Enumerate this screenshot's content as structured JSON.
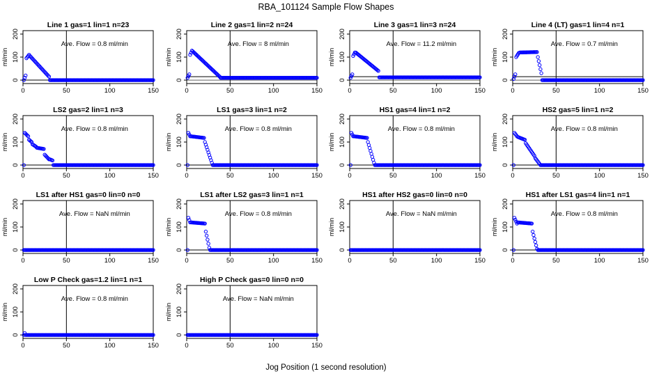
{
  "figure": {
    "title": "RBA_101124  Sample Flow Shapes",
    "xlabel": "Jog Position (1 second resolution)",
    "ylabel": "ml/min",
    "x_ticks": [
      "0",
      "50",
      "100",
      "150"
    ],
    "y_ticks": [
      "0",
      "100",
      "200"
    ],
    "point_color": "#0000ff"
  },
  "chart_data": [
    {
      "type": "scatter",
      "title": "Line 1 gas=1 lin=1 n=23",
      "annotation": "Ave. Flow =  0.8  ml/min",
      "xlim": [
        0,
        150
      ],
      "ylim": [
        -15,
        215
      ],
      "vline": 50,
      "hline": 0,
      "segments": [
        [
          1,
          3,
          0,
          20
        ],
        [
          4,
          7,
          95,
          110
        ],
        [
          8,
          30,
          105,
          15
        ],
        [
          31,
          150,
          0,
          0
        ]
      ]
    },
    {
      "type": "scatter",
      "title": "Line 2 gas=1 lin=2 n=24",
      "annotation": "Ave. Flow =  8  ml/min",
      "xlim": [
        0,
        150
      ],
      "ylim": [
        -15,
        215
      ],
      "vline": 50,
      "hline": 15,
      "segments": [
        [
          1,
          3,
          10,
          25
        ],
        [
          4,
          6,
          110,
          128
        ],
        [
          7,
          38,
          125,
          15
        ],
        [
          39,
          150,
          10,
          10
        ]
      ]
    },
    {
      "type": "scatter",
      "title": "Line 3 gas=1 lin=3 n=24",
      "annotation": "Ave. Flow =  11.2  ml/min",
      "xlim": [
        0,
        150
      ],
      "ylim": [
        -15,
        215
      ],
      "vline": 50,
      "hline": 15,
      "segments": [
        [
          1,
          3,
          10,
          25
        ],
        [
          4,
          6,
          105,
          120
        ],
        [
          7,
          33,
          120,
          40
        ],
        [
          34,
          150,
          12,
          12
        ]
      ]
    },
    {
      "type": "scatter",
      "title": "Line 4 (LT) gas=1 lin=4 n=1",
      "annotation": "Ave. Flow =  0.7  ml/min",
      "xlim": [
        0,
        150
      ],
      "ylim": [
        -15,
        215
      ],
      "vline": 50,
      "hline": 15,
      "segments": [
        [
          1,
          3,
          5,
          25
        ],
        [
          4,
          7,
          100,
          118
        ],
        [
          8,
          28,
          120,
          122
        ],
        [
          29,
          33,
          100,
          30
        ],
        [
          34,
          150,
          0,
          0
        ]
      ]
    },
    {
      "type": "scatter",
      "title": "LS2 gas=2 lin=1 n=3",
      "annotation": "Ave. Flow =  0.8  ml/min",
      "xlim": [
        0,
        150
      ],
      "ylim": [
        -15,
        215
      ],
      "vline": 50,
      "hline": 0,
      "segments": [
        [
          1,
          1,
          0,
          0
        ],
        [
          2,
          6,
          140,
          125
        ],
        [
          7,
          10,
          110,
          100
        ],
        [
          11,
          15,
          90,
          80
        ],
        [
          16,
          24,
          75,
          70
        ],
        [
          25,
          30,
          45,
          25
        ],
        [
          31,
          34,
          25,
          20
        ],
        [
          35,
          150,
          0,
          0
        ]
      ]
    },
    {
      "type": "scatter",
      "title": "LS1 gas=3 lin=1 n=2",
      "annotation": "Ave. Flow =  0.8  ml/min",
      "xlim": [
        0,
        150
      ],
      "ylim": [
        -15,
        215
      ],
      "vline": 50,
      "hline": 0,
      "segments": [
        [
          1,
          1,
          0,
          0
        ],
        [
          2,
          4,
          140,
          125
        ],
        [
          5,
          20,
          125,
          118
        ],
        [
          21,
          29,
          100,
          10
        ],
        [
          30,
          150,
          0,
          0
        ]
      ]
    },
    {
      "type": "scatter",
      "title": "HS1 gas=4 lin=1 n=2",
      "annotation": "Ave. Flow =  0.8  ml/min",
      "xlim": [
        0,
        150
      ],
      "ylim": [
        -15,
        215
      ],
      "vline": 50,
      "hline": 0,
      "segments": [
        [
          1,
          1,
          0,
          0
        ],
        [
          2,
          4,
          140,
          125
        ],
        [
          5,
          20,
          125,
          118
        ],
        [
          21,
          28,
          100,
          10
        ],
        [
          29,
          150,
          0,
          0
        ]
      ]
    },
    {
      "type": "scatter",
      "title": "HS2 gas=5 lin=1 n=2",
      "annotation": "Ave. Flow =  0.8  ml/min",
      "xlim": [
        0,
        150
      ],
      "ylim": [
        -15,
        215
      ],
      "vline": 50,
      "hline": 0,
      "segments": [
        [
          1,
          1,
          0,
          0
        ],
        [
          2,
          5,
          140,
          125
        ],
        [
          6,
          14,
          122,
          110
        ],
        [
          15,
          25,
          95,
          40
        ],
        [
          26,
          31,
          30,
          5
        ],
        [
          32,
          150,
          0,
          0
        ]
      ]
    },
    {
      "type": "scatter",
      "title": "LS1 after HS1 gas=0 lin=0 n=0",
      "annotation": "Ave. Flow =  NaN  ml/min",
      "xlim": [
        0,
        150
      ],
      "ylim": [
        -15,
        215
      ],
      "vline": 50,
      "hline": 0,
      "segments": [
        [
          1,
          150,
          0,
          0
        ]
      ]
    },
    {
      "type": "scatter",
      "title": "LS1 after LS2 gas=3 lin=1 n=1",
      "annotation": "Ave. Flow =  0.8  ml/min",
      "xlim": [
        0,
        150
      ],
      "ylim": [
        -15,
        215
      ],
      "vline": 50,
      "hline": 0,
      "segments": [
        [
          1,
          1,
          0,
          0
        ],
        [
          2,
          4,
          140,
          120
        ],
        [
          5,
          21,
          120,
          115
        ],
        [
          22,
          26,
          80,
          10
        ],
        [
          27,
          150,
          0,
          0
        ]
      ]
    },
    {
      "type": "scatter",
      "title": "HS1 after HS2 gas=0 lin=0 n=0",
      "annotation": "Ave. Flow =  NaN  ml/min",
      "xlim": [
        0,
        150
      ],
      "ylim": [
        -15,
        215
      ],
      "vline": 50,
      "hline": 0,
      "segments": [
        [
          1,
          150,
          0,
          0
        ]
      ]
    },
    {
      "type": "scatter",
      "title": "HS1 after LS1 gas=4 lin=1 n=1",
      "annotation": "Ave. Flow =  0.8  ml/min",
      "xlim": [
        0,
        150
      ],
      "ylim": [
        -15,
        215
      ],
      "vline": 50,
      "hline": 0,
      "segments": [
        [
          1,
          1,
          0,
          0
        ],
        [
          2,
          5,
          140,
          115
        ],
        [
          6,
          22,
          120,
          115
        ],
        [
          23,
          28,
          80,
          5
        ],
        [
          29,
          150,
          0,
          0
        ]
      ]
    },
    {
      "type": "scatter",
      "title": "Low P Check gas=1.2 lin=1 n=1",
      "annotation": "Ave. Flow =  0.8  ml/min",
      "xlim": [
        0,
        150
      ],
      "ylim": [
        -15,
        215
      ],
      "vline": 50,
      "hline": 0,
      "segments": [
        [
          1,
          1,
          0,
          0
        ],
        [
          2,
          2,
          8,
          8
        ],
        [
          3,
          150,
          0,
          0
        ]
      ]
    },
    {
      "type": "scatter",
      "title": "High P Check gas=0 lin=0 n=0",
      "annotation": "Ave. Flow =  NaN  ml/min",
      "xlim": [
        0,
        150
      ],
      "ylim": [
        -15,
        215
      ],
      "vline": 50,
      "hline": 0,
      "segments": [
        [
          1,
          150,
          0,
          0
        ]
      ]
    }
  ]
}
